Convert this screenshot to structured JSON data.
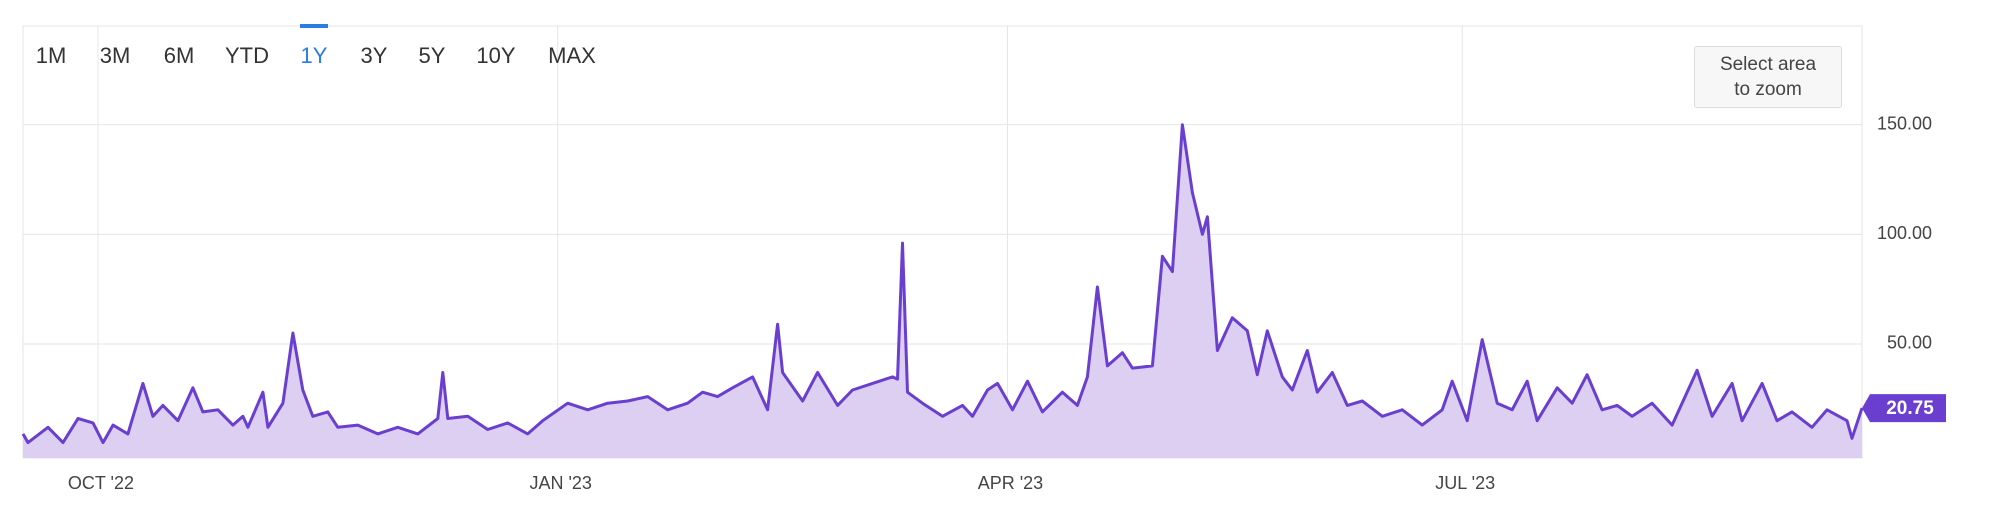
{
  "chart_data": {
    "type": "area",
    "range_buttons": [
      "1M",
      "3M",
      "6M",
      "YTD",
      "1Y",
      "3Y",
      "5Y",
      "10Y",
      "MAX"
    ],
    "selected_range": 4,
    "zoom_hint": "Select area to zoom",
    "color": "#6a3fd0",
    "fill": "#dccff2",
    "x": [
      0,
      1,
      5,
      8,
      11,
      14,
      16,
      18,
      21,
      24,
      26,
      28,
      31,
      34,
      36,
      39,
      42,
      44,
      45,
      48,
      49,
      52,
      54,
      56,
      58,
      61,
      63,
      67,
      71,
      75,
      79,
      83,
      84,
      85,
      89,
      93,
      97,
      101,
      104,
      109,
      113,
      117,
      121,
      125,
      129,
      133,
      136,
      139,
      142,
      146,
      149,
      151,
      152,
      156,
      159,
      163,
      166,
      170,
      174,
      175,
      176,
      177,
      180,
      184,
      188,
      190,
      193,
      195,
      198,
      201,
      204,
      208,
      211,
      213,
      215,
      217,
      220,
      222,
      226,
      228,
      230,
      232,
      234,
      236,
      237,
      239,
      242,
      245,
      247,
      249,
      252,
      254,
      257,
      259,
      262,
      265,
      268,
      272,
      276,
      280,
      284,
      286,
      289,
      292,
      295,
      298,
      301,
      303,
      307,
      310,
      313,
      316,
      319,
      322,
      326,
      330,
      335,
      338,
      342,
      344,
      348,
      351,
      354,
      358,
      361,
      365,
      366,
      368
    ],
    "values": [
      9,
      5,
      12,
      5,
      16,
      14,
      5,
      13,
      9,
      32,
      17,
      22,
      15,
      30,
      19,
      20,
      13,
      17,
      12,
      28,
      12,
      23,
      55,
      29,
      17,
      19,
      12,
      13,
      9,
      12,
      9,
      16,
      37,
      16,
      17,
      11,
      14,
      9,
      15,
      23,
      20,
      23,
      24,
      26,
      20,
      23,
      28,
      26,
      30,
      35,
      20,
      59,
      37,
      24,
      37,
      22,
      29,
      32,
      35,
      34,
      96,
      28,
      23,
      17,
      22,
      17,
      29,
      32,
      20,
      33,
      19,
      28,
      22,
      35,
      76,
      40,
      46,
      39,
      40,
      90,
      83,
      150,
      119,
      100,
      108,
      47,
      62,
      56,
      36,
      56,
      35,
      29,
      47,
      28,
      37,
      22,
      24,
      17,
      20,
      13,
      20,
      33,
      15,
      52,
      23,
      20,
      33,
      15,
      30,
      23,
      36,
      20,
      22,
      17,
      23,
      13,
      38,
      17,
      32,
      15,
      32,
      15,
      19,
      12,
      20,
      15,
      7,
      20.75
    ],
    "xlim": [
      0,
      368
    ],
    "ylim": [
      -2,
      195
    ],
    "xticks": [
      {
        "value": 15,
        "label": "OCT '22"
      },
      {
        "value": 107,
        "label": "JAN '23"
      },
      {
        "value": 197,
        "label": "APR '23"
      },
      {
        "value": 288,
        "label": "JUL '23"
      }
    ],
    "yticks": [
      {
        "value": 50,
        "label": "50.00"
      },
      {
        "value": 100,
        "label": "100.00"
      },
      {
        "value": 150,
        "label": "150.00"
      }
    ],
    "grid": true
  }
}
